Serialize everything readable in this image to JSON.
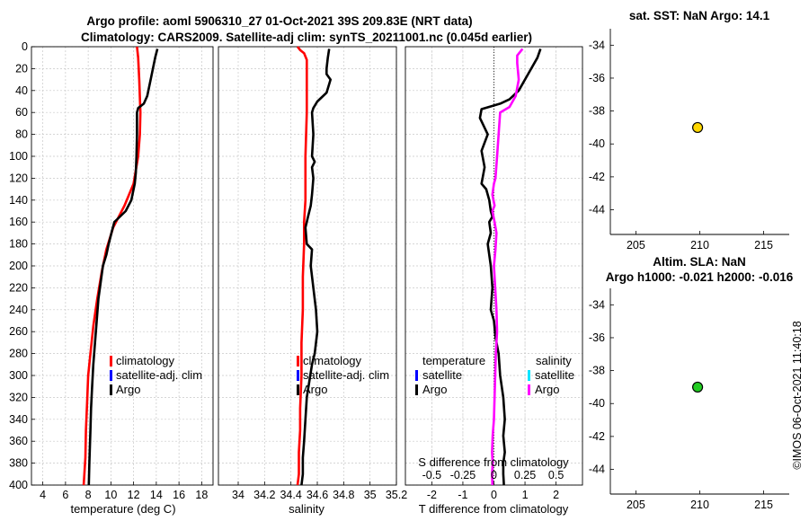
{
  "figure": {
    "title_line1": "Argo profile: aoml 5906310_27 01-Oct-2021 39S 209.83E (NRT data)",
    "title_line2": "Climatology: CARS2009. Satellite-adj clim: synTS_20211001.nc (0.045d earlier)",
    "watermark": "©IMOS 06-Oct-2021 11:40:18"
  },
  "colors": {
    "climatology": "#ff0000",
    "satellite": "#0000ff",
    "satellite_salinity": "#00e5ff",
    "argo": "#000000",
    "argo_salinity_diff": "#ff00ff",
    "grid": "#c8c8c8",
    "marker_sst": "#ffd700",
    "marker_sla": "#22cc22"
  },
  "chart_data": [
    {
      "id": "temperature",
      "type": "line",
      "xlabel": "temperature (deg C)",
      "ylabel": "",
      "xlim": [
        3,
        19
      ],
      "ylim": [
        400,
        0
      ],
      "xticks": [
        4,
        6,
        8,
        10,
        12,
        14,
        16,
        18
      ],
      "xtick_labels": [
        "4",
        "6",
        "8",
        "10",
        "12",
        "14",
        "16",
        "18"
      ],
      "yticks": [
        0,
        20,
        40,
        60,
        80,
        100,
        120,
        140,
        160,
        180,
        200,
        220,
        240,
        260,
        280,
        300,
        320,
        340,
        360,
        380,
        400
      ],
      "grid": true,
      "legend": [
        "climatology",
        "satellite-adj. clim",
        "Argo"
      ],
      "legend_position": "bottom-right",
      "series": [
        {
          "name": "climatology",
          "color_key": "climatology",
          "x": [
            12.3,
            12.4,
            12.5,
            12.6,
            12.55,
            12.4,
            12.0,
            11.2,
            10.2,
            9.6,
            9.2,
            8.8,
            8.45,
            8.2,
            8.0,
            7.9,
            7.8,
            7.75,
            7.6
          ],
          "y": [
            0,
            10,
            30,
            60,
            80,
            100,
            125,
            145,
            165,
            185,
            205,
            230,
            255,
            280,
            300,
            325,
            350,
            375,
            400
          ]
        },
        {
          "name": "Argo",
          "color_key": "argo",
          "x": [
            14.1,
            13.9,
            13.5,
            13.2,
            12.9,
            12.4,
            12.3,
            12.3,
            12.25,
            12.2,
            12.1,
            11.8,
            11.3,
            10.3,
            10.1,
            9.8,
            9.6,
            9.3,
            9.1,
            8.9,
            8.75,
            8.6,
            8.45,
            8.35,
            8.25,
            8.2,
            8.15,
            8.1,
            8.05
          ],
          "y": [
            2,
            10,
            30,
            45,
            52,
            56,
            60,
            80,
            100,
            115,
            125,
            140,
            150,
            160,
            168,
            180,
            190,
            200,
            215,
            230,
            250,
            270,
            290,
            310,
            330,
            350,
            365,
            380,
            400
          ]
        }
      ]
    },
    {
      "id": "salinity",
      "type": "line",
      "xlabel": "salinity",
      "xlim": [
        33.85,
        35.2
      ],
      "ylim": [
        400,
        0
      ],
      "xticks": [
        34,
        34.2,
        34.4,
        34.6,
        34.8,
        35,
        35.2
      ],
      "xtick_labels": [
        "34",
        "34.2",
        "34.4",
        "34.6",
        "34.8",
        "35",
        "35.2"
      ],
      "grid": true,
      "legend": [
        "climatology",
        "satellite-adj. clim",
        "Argo"
      ],
      "legend_position": "bottom-left",
      "series": [
        {
          "name": "climatology",
          "color_key": "climatology",
          "x": [
            34.45,
            34.47,
            34.5,
            34.52,
            34.52,
            34.51,
            34.51,
            34.5,
            34.5,
            34.49,
            34.49,
            34.48,
            34.48,
            34.47,
            34.47,
            34.46,
            34.46,
            34.45
          ],
          "y": [
            0,
            3,
            6,
            12,
            60,
            100,
            140,
            160,
            180,
            210,
            240,
            270,
            300,
            330,
            350,
            370,
            390,
            400
          ]
        },
        {
          "name": "Argo",
          "color_key": "argo",
          "x": [
            34.69,
            34.68,
            34.67,
            34.67,
            34.7,
            34.67,
            34.6,
            34.57,
            34.56,
            34.57,
            34.56,
            34.58,
            34.56,
            34.57,
            34.56,
            34.55,
            34.53,
            34.52,
            34.51,
            34.52,
            34.56,
            34.55,
            34.57,
            34.59,
            34.6,
            34.58,
            34.56,
            34.54,
            34.52,
            34.51,
            34.5,
            34.49,
            34.49,
            34.48
          ],
          "y": [
            2,
            10,
            20,
            25,
            30,
            42,
            50,
            56,
            60,
            80,
            100,
            105,
            110,
            120,
            135,
            145,
            155,
            160,
            165,
            180,
            185,
            200,
            220,
            240,
            260,
            280,
            290,
            305,
            320,
            340,
            360,
            375,
            390,
            400
          ]
        }
      ]
    },
    {
      "id": "difference",
      "type": "line",
      "xlabel": "T difference from climatology",
      "secondary_xlabel": "S difference from climatology",
      "xlim": [
        -2.85,
        2.85
      ],
      "ylim": [
        400,
        0
      ],
      "xticks": [
        -2,
        -1,
        0,
        1,
        2
      ],
      "xtick_labels": [
        "-2",
        "-1",
        "0",
        "1",
        "2"
      ],
      "secondary_xticks": [
        -0.5,
        -0.25,
        0,
        0.25,
        0.5
      ],
      "secondary_xtick_labels": [
        "-0.5",
        "-0.25",
        "0",
        "0.25",
        "0.5"
      ],
      "secondary_scale": 0.25,
      "grid": true,
      "legend_left_title": "temperature",
      "legend_left": [
        "satellite",
        "Argo"
      ],
      "legend_right_title": "salinity",
      "legend_right": [
        "satellite",
        "Argo"
      ],
      "legend_position": "bottom",
      "series": [
        {
          "name": "T difference (Argo)",
          "color_key": "argo",
          "x": [
            1.5,
            1.4,
            1.1,
            0.8,
            0.5,
            0.2,
            -0.4,
            -0.45,
            -0.2,
            -0.4,
            -0.3,
            -0.4,
            -0.25,
            -0.15,
            -0.1,
            -0.05,
            -0.15,
            -0.1,
            -0.2,
            -0.1,
            -0.05,
            -0.1,
            0.0,
            0.05,
            0.15,
            0.2,
            0.3,
            0.35,
            0.3,
            0.35,
            0.3,
            0.3,
            0.32
          ],
          "y": [
            2,
            10,
            25,
            40,
            48,
            52,
            57,
            65,
            80,
            95,
            110,
            125,
            130,
            140,
            150,
            155,
            160,
            170,
            180,
            200,
            220,
            240,
            250,
            265,
            280,
            300,
            320,
            340,
            355,
            370,
            380,
            390,
            400
          ]
        },
        {
          "name": "S difference (Argo)",
          "color_key": "argo_salinity_diff",
          "x": [
            0.92,
            0.75,
            0.75,
            0.8,
            0.7,
            0.5,
            0.2,
            0.15,
            0.1,
            0.05,
            0.0,
            -0.05,
            0.02,
            -0.05,
            0.02,
            0.08,
            0.05,
            0.0,
            0.04,
            0.08,
            0.1,
            0.06,
            0.04,
            0.02,
            0.0,
            -0.04,
            -0.06,
            -0.04,
            -0.06,
            -0.05
          ],
          "y": [
            2,
            8,
            15,
            30,
            45,
            55,
            60,
            80,
            100,
            120,
            125,
            135,
            145,
            150,
            160,
            170,
            185,
            200,
            220,
            240,
            260,
            280,
            300,
            320,
            340,
            355,
            370,
            380,
            390,
            400
          ]
        }
      ]
    },
    {
      "id": "sst_map",
      "type": "scatter",
      "title": "sat. SST: NaN Argo: 14.1",
      "xlim": [
        203,
        217
      ],
      "ylim": [
        -45.5,
        -33
      ],
      "xticks": [
        205,
        210,
        215
      ],
      "xtick_labels": [
        "205",
        "210",
        "215"
      ],
      "yticks": [
        -34,
        -36,
        -38,
        -40,
        -42,
        -44
      ],
      "ytick_labels": [
        "-34",
        "-36",
        "-38",
        "-40",
        "-42",
        "-44"
      ],
      "grid": false,
      "points": [
        {
          "x": 209.83,
          "y": -39,
          "color_key": "marker_sst"
        }
      ]
    },
    {
      "id": "sla_map",
      "type": "scatter",
      "title_line1": "Altim. SLA: NaN",
      "title_line2": "Argo h1000: -0.021 h2000: -0.016",
      "xlim": [
        203,
        217
      ],
      "ylim": [
        -45.5,
        -33
      ],
      "xticks": [
        205,
        210,
        215
      ],
      "xtick_labels": [
        "205",
        "210",
        "215"
      ],
      "yticks": [
        -34,
        -36,
        -38,
        -40,
        -42,
        -44
      ],
      "ytick_labels": [
        "-34",
        "-36",
        "-38",
        "-40",
        "-42",
        "-44"
      ],
      "grid": false,
      "points": [
        {
          "x": 209.83,
          "y": -39,
          "color_key": "marker_sla"
        }
      ]
    }
  ],
  "legend_labels": {
    "climatology": "climatology",
    "satellite_adj": "satellite-adj. clim",
    "argo": "Argo",
    "temperature": "temperature",
    "salinity": "salinity",
    "satellite": "satellite"
  }
}
